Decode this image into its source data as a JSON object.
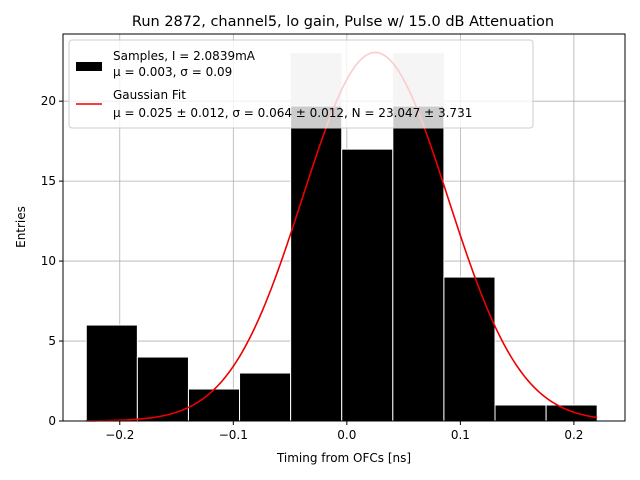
{
  "chart_data": {
    "type": "bar",
    "title": "Run 2872, channel5, lo gain, Pulse w/ 15.0 dB Attenuation",
    "xlabel": "Timing from OFCs [ns]",
    "ylabel": "Entries",
    "xlim": [
      -0.25,
      0.245
    ],
    "ylim": [
      0,
      24.2
    ],
    "grid": true,
    "xticks": [
      -0.2,
      -0.1,
      0.0,
      0.1,
      0.2
    ],
    "xtick_labels": [
      "−0.2",
      "−0.1",
      "0.0",
      "0.1",
      "0.2"
    ],
    "yticks": [
      0,
      5,
      10,
      15,
      20
    ],
    "ytick_labels": [
      "0",
      "5",
      "10",
      "15",
      "20"
    ],
    "bins": [
      {
        "left": -0.2295,
        "right": -0.1845,
        "value": 6
      },
      {
        "left": -0.1845,
        "right": -0.1395,
        "value": 4
      },
      {
        "left": -0.1395,
        "right": -0.0945,
        "value": 2
      },
      {
        "left": -0.0945,
        "right": -0.0495,
        "value": 3
      },
      {
        "left": -0.0495,
        "right": -0.0045,
        "value": 23
      },
      {
        "left": -0.0045,
        "right": 0.0405,
        "value": 17
      },
      {
        "left": 0.0405,
        "right": 0.0855,
        "value": 23
      },
      {
        "left": 0.0855,
        "right": 0.1305,
        "value": 9
      },
      {
        "left": 0.1305,
        "right": 0.1755,
        "value": 1
      },
      {
        "left": 0.1755,
        "right": 0.2205,
        "value": 1
      }
    ],
    "bar_color": "#000000",
    "bar_edge_color": "#ffffff",
    "overflow_color": "#cccccc",
    "fit": {
      "mu": 0.025,
      "sigma": 0.064,
      "N": 23.047,
      "x_range": [
        -0.2295,
        0.2205
      ],
      "color": "#ee0000"
    },
    "legend": {
      "location": "upper-left",
      "entries": [
        {
          "kind": "patch",
          "color": "#000000",
          "line1": "Samples, I = 2.0839mA",
          "line2": "μ = 0.003, σ = 0.09"
        },
        {
          "kind": "line",
          "color": "#ee0000",
          "line1": "Gaussian Fit",
          "line2": "μ = 0.025 ± 0.012, σ = 0.064 ± 0.012, N = 23.047 ± 3.731"
        }
      ]
    }
  }
}
